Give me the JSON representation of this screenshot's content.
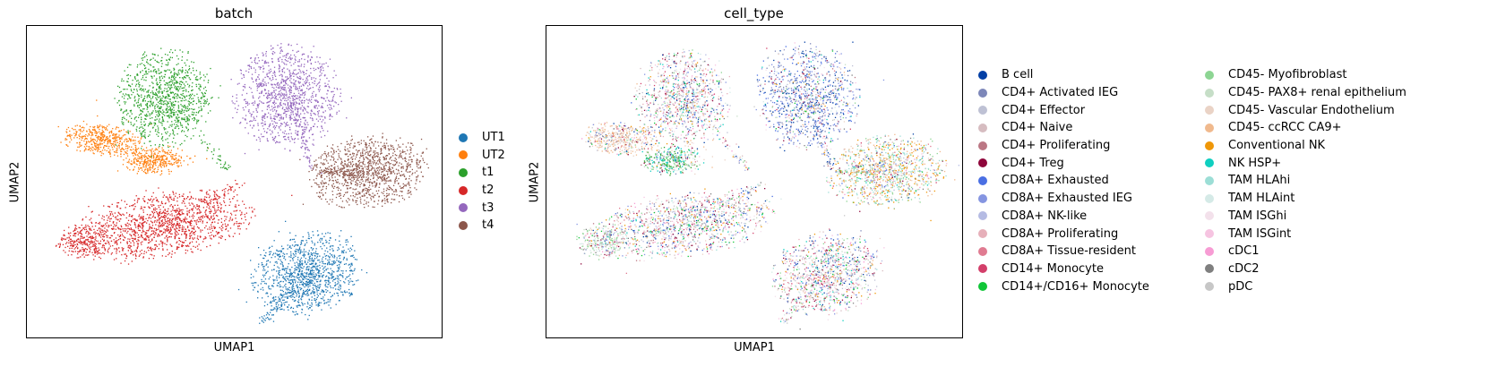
{
  "chart_data": [
    {
      "type": "scatter",
      "title": "batch",
      "xlabel": "UMAP1",
      "ylabel": "UMAP2",
      "grid": false,
      "legend_position": "right",
      "series": [
        {
          "name": "UT1",
          "color": "#1f77b4"
        },
        {
          "name": "UT2",
          "color": "#ff7f0e"
        },
        {
          "name": "t1",
          "color": "#2ca02c"
        },
        {
          "name": "t2",
          "color": "#d62728"
        },
        {
          "name": "t3",
          "color": "#9467bd"
        },
        {
          "name": "t4",
          "color": "#8c564b"
        }
      ]
    },
    {
      "type": "scatter",
      "title": "cell_type",
      "xlabel": "UMAP1",
      "ylabel": "UMAP2",
      "grid": false,
      "legend_position": "right",
      "series": [
        {
          "name": "B cell",
          "color": "#023fa5"
        },
        {
          "name": "CD4+ Activated IEG",
          "color": "#7d87b9"
        },
        {
          "name": "CD4+ Effector",
          "color": "#bec1d4"
        },
        {
          "name": "CD4+ Naive",
          "color": "#d6bcc0"
        },
        {
          "name": "CD4+ Proliferating",
          "color": "#bb7784"
        },
        {
          "name": "CD4+ Treg",
          "color": "#8e063b"
        },
        {
          "name": "CD8A+ Exhausted",
          "color": "#4a6fe3"
        },
        {
          "name": "CD8A+ Exhausted IEG",
          "color": "#8595e1"
        },
        {
          "name": "CD8A+ NK-like",
          "color": "#b5bbe3"
        },
        {
          "name": "CD8A+ Proliferating",
          "color": "#e6afb9"
        },
        {
          "name": "CD8A+ Tissue-resident",
          "color": "#e07b91"
        },
        {
          "name": "CD14+ Monocyte",
          "color": "#d33f6a"
        },
        {
          "name": "CD14+/CD16+ Monocyte",
          "color": "#11c638"
        },
        {
          "name": "CD45- Myofibroblast",
          "color": "#8dd593"
        },
        {
          "name": "CD45- PAX8+ renal epithelium",
          "color": "#c6dec7"
        },
        {
          "name": "CD45- Vascular Endothelium",
          "color": "#ead3c6"
        },
        {
          "name": "CD45- ccRCC CA9+",
          "color": "#f0b98d"
        },
        {
          "name": "Conventional NK",
          "color": "#ef9708"
        },
        {
          "name": "NK HSP+",
          "color": "#0fcfc0"
        },
        {
          "name": "TAM HLAhi",
          "color": "#9cded6"
        },
        {
          "name": "TAM HLAint",
          "color": "#d5eae7"
        },
        {
          "name": "TAM ISGhi",
          "color": "#f3e1eb"
        },
        {
          "name": "TAM ISGint",
          "color": "#f6c4e1"
        },
        {
          "name": "cDC1",
          "color": "#f79cd4"
        },
        {
          "name": "cDC2",
          "color": "#7f7f7f"
        },
        {
          "name": "pDC",
          "color": "#c7c7c7"
        }
      ]
    }
  ]
}
